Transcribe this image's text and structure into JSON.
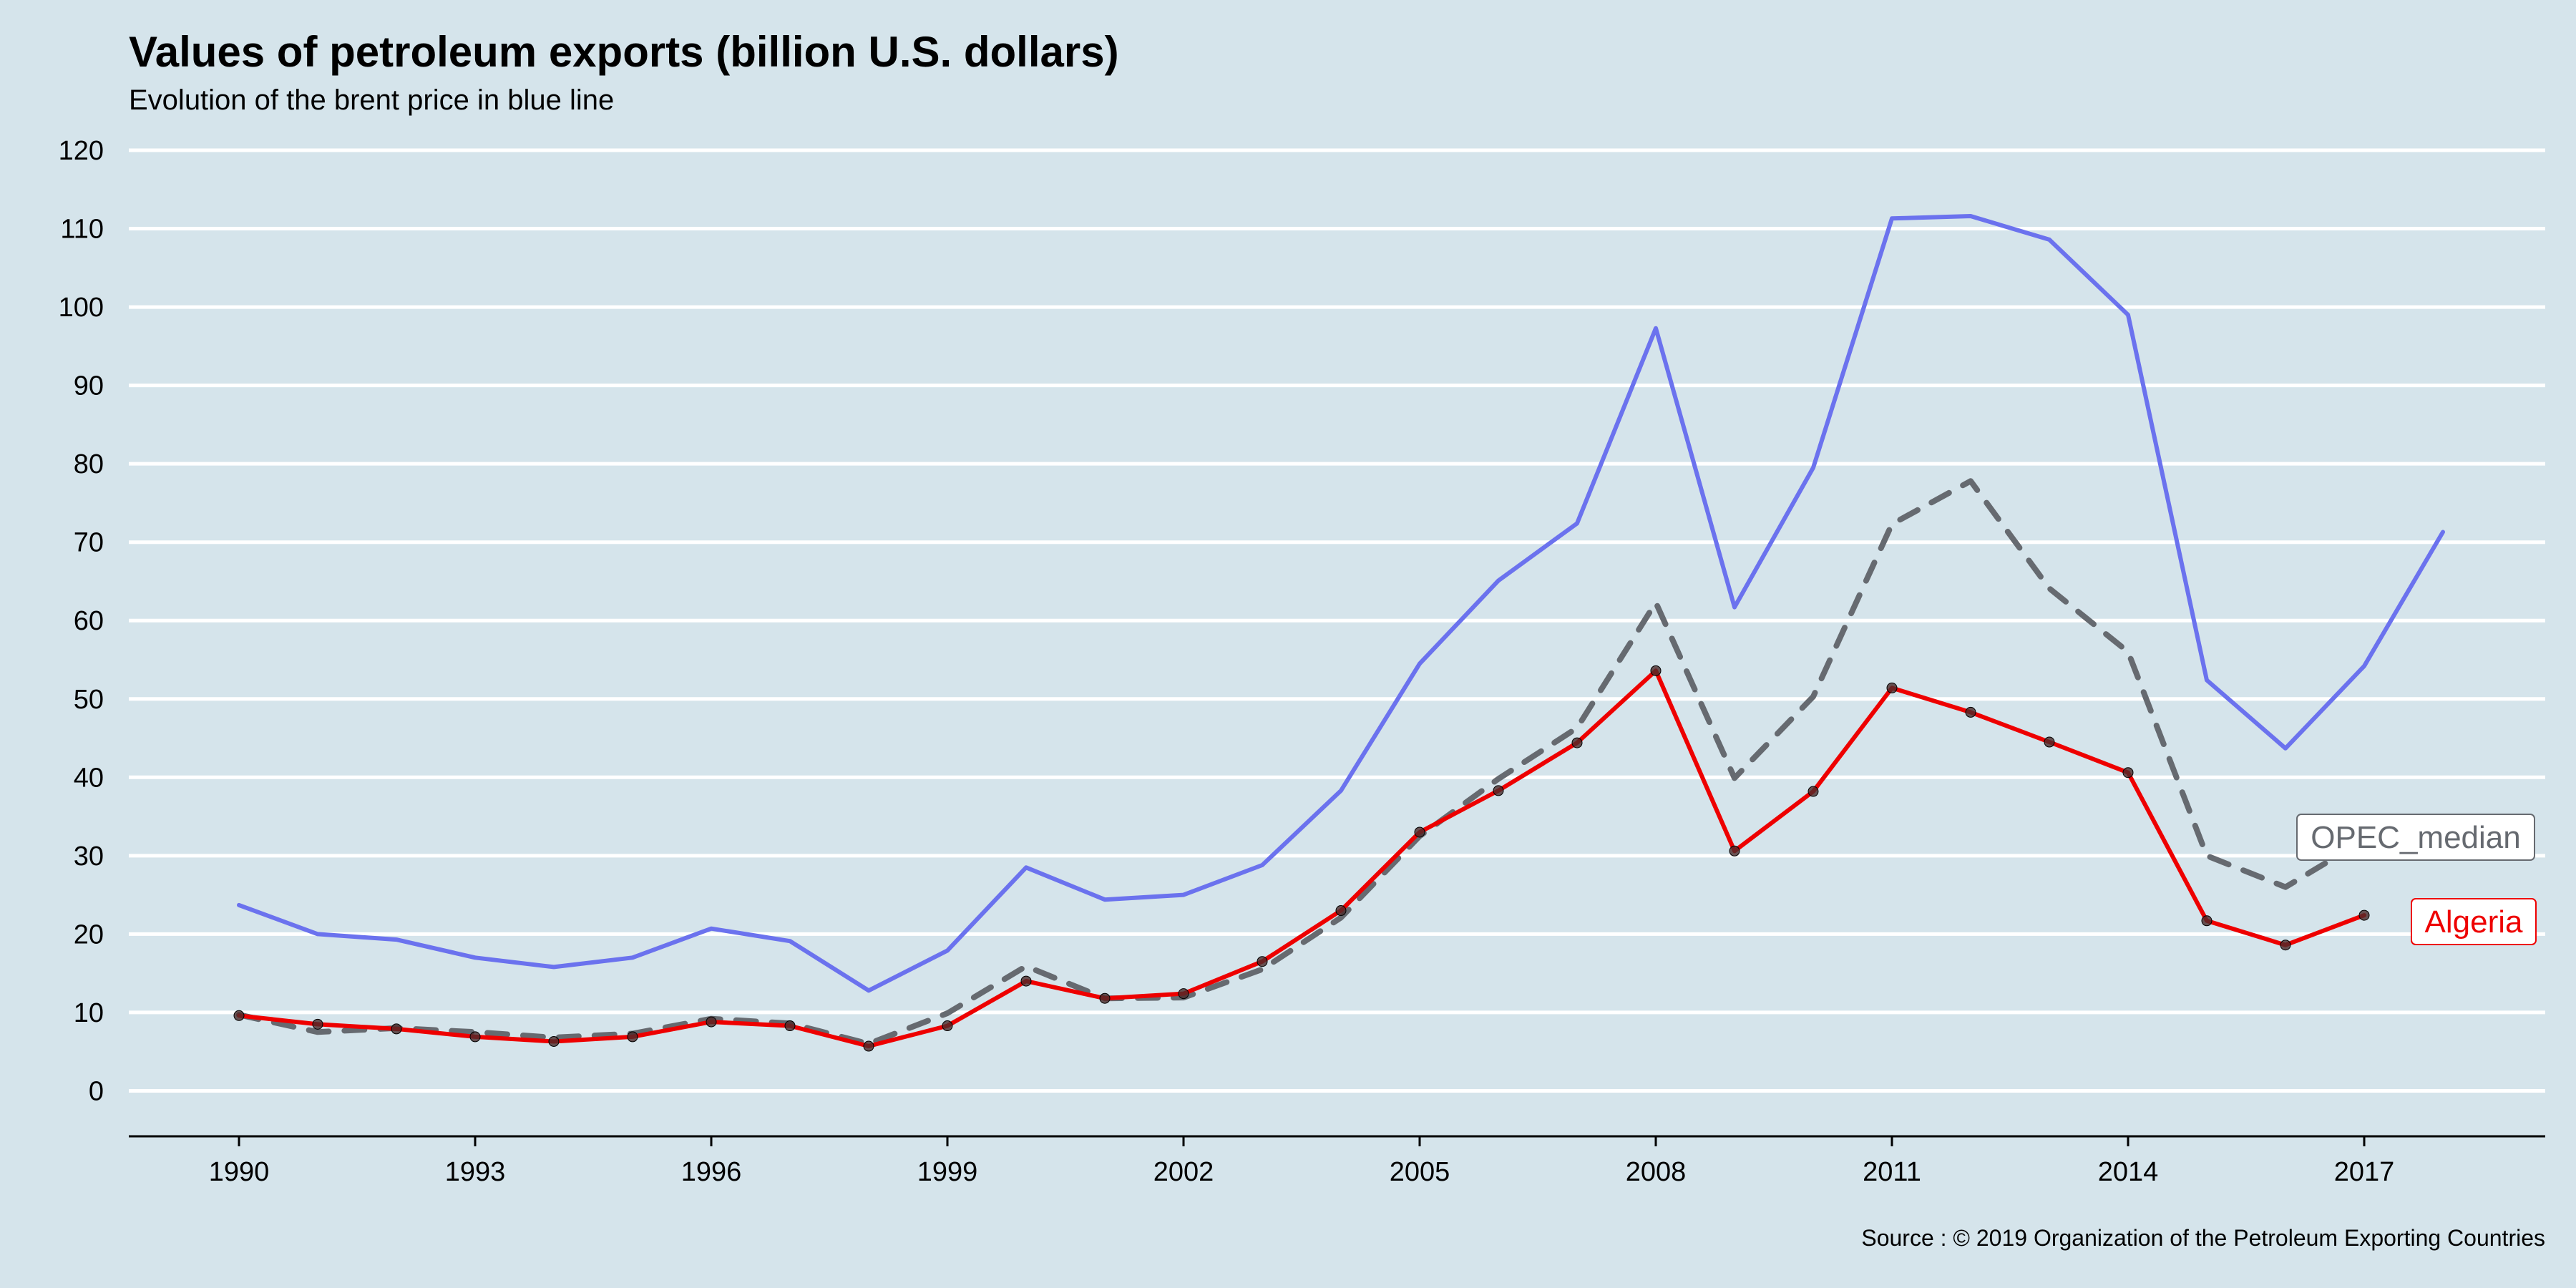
{
  "title": "Values of petroleum exports (billion U.S. dollars)",
  "subtitle": "Evolution of the brent price in blue line",
  "caption": "Source : © 2019 Organization of the Petroleum Exporting Countries",
  "colors": {
    "background": "#d5e4eb",
    "gridline": "#ffffff",
    "brent": "#6b72ee",
    "algeria": "#ee0000",
    "opec_median": "#666a70",
    "points": "#4a2b2b"
  },
  "chart_data": {
    "type": "line",
    "x_ticks": [
      1990,
      1993,
      1996,
      1999,
      2002,
      2005,
      2008,
      2011,
      2014,
      2017
    ],
    "y_ticks": [
      0,
      10,
      20,
      30,
      40,
      50,
      60,
      70,
      80,
      90,
      100,
      110,
      120
    ],
    "xlim": [
      1988.6,
      2019.3
    ],
    "ylim": [
      -5.8,
      120
    ],
    "grid": "horizontal major lines only",
    "legend": "none; series labelled directly at line ends (right)",
    "series": [
      {
        "name": "Brent",
        "style": "solid",
        "color": "#6b72ee",
        "x": [
          1990,
          1991,
          1992,
          1993,
          1994,
          1995,
          1996,
          1997,
          1998,
          1999,
          2000,
          2001,
          2002,
          2003,
          2004,
          2005,
          2006,
          2007,
          2008,
          2009,
          2010,
          2011,
          2012,
          2013,
          2014,
          2015,
          2016,
          2017,
          2018
        ],
        "y": [
          23.7,
          20.0,
          19.3,
          17.0,
          15.8,
          17.0,
          20.7,
          19.1,
          12.8,
          17.9,
          28.5,
          24.4,
          25.0,
          28.8,
          38.3,
          54.5,
          65.1,
          72.4,
          97.3,
          61.7,
          79.5,
          111.3,
          111.6,
          108.6,
          99.0,
          52.4,
          43.7,
          54.2,
          71.3
        ]
      },
      {
        "name": "OPEC_median",
        "style": "dashed",
        "color": "#666a70",
        "x": [
          1990,
          1991,
          1992,
          1993,
          1994,
          1995,
          1996,
          1997,
          1998,
          1999,
          2000,
          2001,
          2002,
          2003,
          2004,
          2005,
          2006,
          2007,
          2008,
          2009,
          2010,
          2011,
          2012,
          2013,
          2014,
          2015,
          2016,
          2017
        ],
        "y": [
          9.7,
          7.5,
          8.0,
          7.5,
          6.8,
          7.3,
          9.2,
          8.6,
          6.0,
          9.9,
          15.9,
          11.8,
          11.9,
          15.5,
          22.1,
          32.5,
          39.8,
          46.3,
          62.3,
          39.9,
          50.3,
          72.3,
          77.8,
          64.1,
          56.0,
          30.0,
          26.0,
          32.0
        ]
      },
      {
        "name": "Algeria",
        "style": "solid",
        "color": "#ee0000",
        "x": [
          1990,
          1991,
          1992,
          1993,
          1994,
          1995,
          1996,
          1997,
          1998,
          1999,
          2000,
          2001,
          2002,
          2003,
          2004,
          2005,
          2006,
          2007,
          2008,
          2009,
          2010,
          2011,
          2012,
          2013,
          2014,
          2015,
          2016,
          2017
        ],
        "y": [
          9.6,
          8.5,
          7.9,
          6.9,
          6.3,
          6.9,
          8.8,
          8.3,
          5.7,
          8.3,
          14.0,
          11.8,
          12.4,
          16.5,
          23.0,
          33.0,
          38.3,
          44.4,
          53.6,
          30.6,
          38.2,
          51.4,
          48.3,
          44.5,
          40.6,
          21.7,
          18.6,
          22.4
        ]
      }
    ],
    "end_labels": [
      {
        "series": "OPEC_median",
        "text": "OPEC_median",
        "color": "#666a70"
      },
      {
        "series": "Algeria",
        "text": "Algeria",
        "color": "#ee0000"
      }
    ]
  }
}
